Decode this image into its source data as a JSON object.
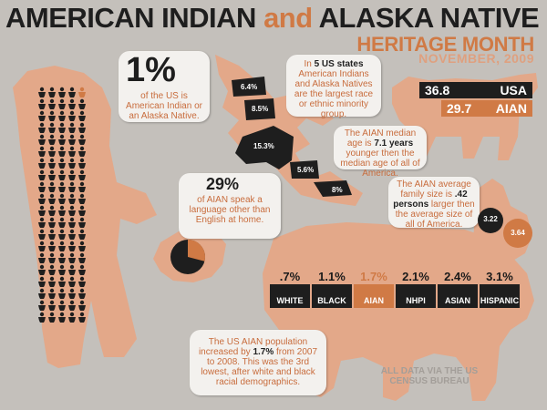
{
  "header": {
    "title_part1": "AMERICAN INDIAN",
    "title_and": "and",
    "title_part2": "ALASKA NATIVE",
    "subtitle": "HERITAGE MONTH",
    "date": "NOVEMBER, 2009"
  },
  "one_percent": {
    "big": "1%",
    "text": "of the US is American Indian or an Alaska Native."
  },
  "states": {
    "text_pre": "In ",
    "text_bold": "5 US states",
    "text_post": " American Indians and Alaska Natives are the largest race or ethnic minority group.",
    "labels": [
      "6.4%",
      "8.5%",
      "15.3%",
      "5.6%",
      "8%"
    ]
  },
  "median_age": {
    "text_pre": "The AIAN median age is ",
    "text_bold": "7.1 years",
    "text_post": " younger then the median age of all of America.",
    "usa_value": "36.8",
    "usa_label": "USA",
    "aian_value": "29.7",
    "aian_label": "AIAN"
  },
  "language": {
    "big": "29%",
    "text": "of AIAN speak a language other than English at home.",
    "fraction": 0.29
  },
  "family": {
    "text_pre": "The AIAN average family size is ",
    "text_bold": ".42 persons",
    "text_post": " larger then the average size of all of America.",
    "usa": "3.22",
    "aian": "3.64"
  },
  "population_growth": {
    "text_pre": "The US AIAN population increased by ",
    "text_bold": "1.7%",
    "text_post": " from 2007 to 2008. This was the 3rd lowest, after white and black racial demographics."
  },
  "growth_bars": [
    {
      "label": "WHITE",
      "value": ".7%",
      "highlight": false
    },
    {
      "label": "BLACK",
      "value": "1.1%",
      "highlight": false
    },
    {
      "label": "AIAN",
      "value": "1.7%",
      "highlight": true
    },
    {
      "label": "NHPI",
      "value": "2.1%",
      "highlight": false
    },
    {
      "label": "ASIAN",
      "value": "2.4%",
      "highlight": false
    },
    {
      "label": "HISPANIC",
      "value": "3.1%",
      "highlight": false
    }
  ],
  "credit": "ALL DATA VIA THE US CENSUS BUREAU",
  "colors": {
    "background": "#c4c0bb",
    "animal": "#e3a889",
    "accent": "#d07a45",
    "dark": "#1e1e1e"
  }
}
